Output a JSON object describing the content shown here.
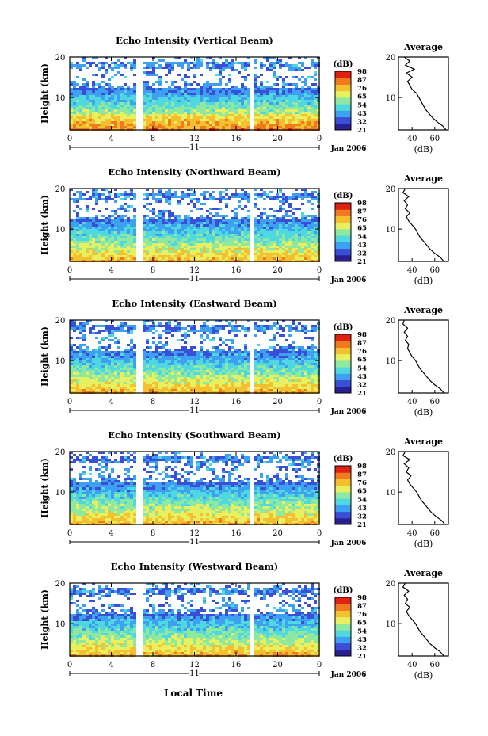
{
  "figure": {
    "time_axis_label": "Local Time",
    "date_label": "Jan 2006",
    "day_label": "11",
    "x_ticks": [
      "0",
      "4",
      "8",
      "12",
      "16",
      "20",
      "0"
    ],
    "y_label": "Height (km)",
    "y_ticks": [
      "10",
      "20"
    ],
    "colorbar_unit": "(dB)",
    "colorbar_ticks": [
      "21",
      "32",
      "43",
      "54",
      "65",
      "76",
      "87",
      "98"
    ],
    "profile_title": "Average",
    "profile_xlabel": "(dB)",
    "profile_x_ticks": [
      "40",
      "60"
    ],
    "profile_y_ticks": [
      "10",
      "20"
    ]
  },
  "colors": {
    "scale": [
      "#2a1f8f",
      "#3a4fd8",
      "#3ea0f0",
      "#4fd8e0",
      "#8ee8a0",
      "#e8f060",
      "#f4c030",
      "#f07a20",
      "#e02010"
    ],
    "frame": "#000000",
    "background": "#ffffff"
  },
  "chart_data": [
    {
      "type": "heatmap",
      "title": "Echo Intensity (Vertical Beam)",
      "xlabel": "Local Time",
      "ylabel": "Height (km)",
      "xlim": [
        0,
        24
      ],
      "ylim": [
        2,
        20
      ],
      "zlim": [
        21,
        98
      ],
      "unit": "dB",
      "data_gaps_hours": [
        [
          6.4,
          6.8
        ],
        [
          17.2,
          17.6
        ]
      ],
      "profile": {
        "title": "Average",
        "xlabel": "(dB)",
        "xlim": [
          28,
          72
        ],
        "ylim": [
          2,
          20
        ],
        "heights": [
          2,
          3,
          4,
          5,
          6,
          7,
          8,
          9,
          10,
          11,
          12,
          13,
          14,
          15,
          16,
          17,
          18,
          19,
          20
        ],
        "values": [
          70,
          67,
          62,
          58,
          55,
          52,
          50,
          48,
          46,
          44,
          40,
          38,
          36,
          40,
          35,
          42,
          34,
          38,
          33
        ]
      }
    },
    {
      "type": "heatmap",
      "title": "Echo Intensity (Northward Beam)",
      "xlabel": "Local Time",
      "ylabel": "Height (km)",
      "xlim": [
        0,
        24
      ],
      "ylim": [
        2,
        20
      ],
      "zlim": [
        21,
        98
      ],
      "unit": "dB",
      "data_gaps_hours": [
        [
          6.4,
          6.8
        ],
        [
          17.2,
          17.6
        ]
      ],
      "profile": {
        "title": "Average",
        "xlabel": "(dB)",
        "xlim": [
          28,
          72
        ],
        "ylim": [
          2,
          20
        ],
        "heights": [
          2,
          3,
          4,
          5,
          6,
          7,
          8,
          9,
          10,
          11,
          12,
          13,
          14,
          15,
          16,
          17,
          18,
          19,
          20
        ],
        "values": [
          68,
          65,
          60,
          56,
          53,
          50,
          47,
          45,
          43,
          40,
          37,
          35,
          38,
          34,
          36,
          33,
          37,
          32,
          34
        ]
      }
    },
    {
      "type": "heatmap",
      "title": "Echo Intensity (Eastward Beam)",
      "xlabel": "Local Time",
      "ylabel": "Height (km)",
      "xlim": [
        0,
        24
      ],
      "ylim": [
        2,
        20
      ],
      "zlim": [
        21,
        98
      ],
      "unit": "dB",
      "data_gaps_hours": [
        [
          6.4,
          6.8
        ],
        [
          17.2,
          17.6
        ]
      ],
      "profile": {
        "title": "Average",
        "xlabel": "(dB)",
        "xlim": [
          28,
          72
        ],
        "ylim": [
          2,
          20
        ],
        "heights": [
          2,
          3,
          4,
          5,
          6,
          7,
          8,
          9,
          10,
          11,
          12,
          13,
          14,
          15,
          16,
          17,
          18,
          19,
          20
        ],
        "values": [
          68,
          65,
          60,
          56,
          53,
          50,
          47,
          45,
          43,
          40,
          38,
          36,
          37,
          34,
          36,
          33,
          36,
          32,
          33
        ]
      }
    },
    {
      "type": "heatmap",
      "title": "Echo Intensity (Southward Beam)",
      "xlabel": "Local Time",
      "ylabel": "Height (km)",
      "xlim": [
        0,
        24
      ],
      "ylim": [
        2,
        20
      ],
      "zlim": [
        21,
        98
      ],
      "unit": "dB",
      "data_gaps_hours": [
        [
          6.4,
          6.8
        ],
        [
          17.2,
          17.6
        ]
      ],
      "profile": {
        "title": "Average",
        "xlabel": "(dB)",
        "xlim": [
          28,
          72
        ],
        "ylim": [
          2,
          20
        ],
        "heights": [
          2,
          3,
          4,
          5,
          6,
          7,
          8,
          9,
          10,
          11,
          12,
          13,
          14,
          15,
          16,
          17,
          18,
          19,
          20
        ],
        "values": [
          69,
          66,
          61,
          57,
          54,
          51,
          48,
          46,
          44,
          41,
          38,
          36,
          39,
          35,
          37,
          33,
          38,
          32,
          34
        ]
      }
    },
    {
      "type": "heatmap",
      "title": "Echo Intensity (Westward Beam)",
      "xlabel": "Local Time",
      "ylabel": "Height (km)",
      "xlim": [
        0,
        24
      ],
      "ylim": [
        2,
        20
      ],
      "zlim": [
        21,
        98
      ],
      "unit": "dB",
      "data_gaps_hours": [
        [
          6.4,
          6.8
        ],
        [
          17.2,
          17.6
        ]
      ],
      "profile": {
        "title": "Average",
        "xlabel": "(dB)",
        "xlim": [
          28,
          72
        ],
        "ylim": [
          2,
          20
        ],
        "heights": [
          2,
          3,
          4,
          5,
          6,
          7,
          8,
          9,
          10,
          11,
          12,
          13,
          14,
          15,
          16,
          17,
          18,
          19,
          20
        ],
        "values": [
          68,
          65,
          60,
          56,
          53,
          50,
          47,
          45,
          43,
          40,
          37,
          35,
          38,
          34,
          36,
          33,
          37,
          32,
          34
        ]
      }
    }
  ]
}
